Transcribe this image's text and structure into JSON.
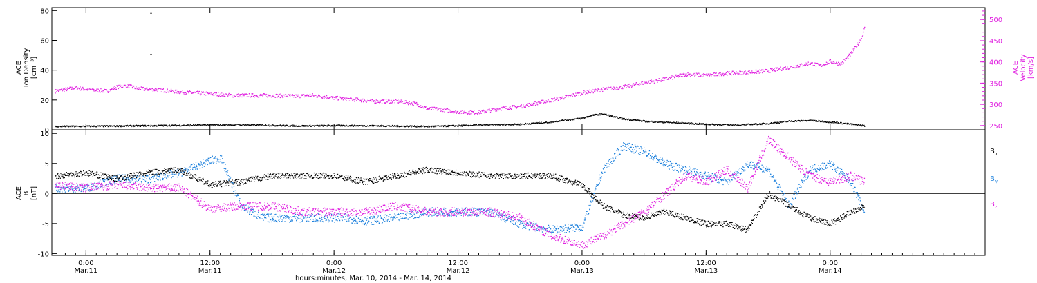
{
  "colors": {
    "black": "#000000",
    "blue": "#1a7fdc",
    "magenta": "#e020e0"
  },
  "chart_data": [
    {
      "type": "scatter",
      "panel": "top",
      "left_axis": {
        "label_lines": [
          "ACE",
          "Ion Density",
          "[cm⁻³]"
        ],
        "ylim": [
          0,
          82
        ],
        "ticks": [
          "0",
          "20",
          "40",
          "60",
          "80"
        ]
      },
      "right_axis": {
        "label_lines": [
          "ACE",
          "Velocity",
          "[km/s]"
        ],
        "ylim": [
          240,
          528
        ],
        "ticks": [
          "250",
          "300",
          "350",
          "400",
          "450",
          "500"
        ]
      },
      "grid": false,
      "series": [
        {
          "axis": "left",
          "color": "#000000",
          "points": [
            [
              -3,
              2.5
            ],
            [
              0,
              2.6
            ],
            [
              3,
              2.8
            ],
            [
              6,
              3.0
            ],
            [
              9,
              3.2
            ],
            [
              12,
              3.5
            ],
            [
              15,
              3.7
            ],
            [
              18,
              3.2
            ],
            [
              21,
              2.9
            ],
            [
              24,
              3.1
            ],
            [
              27,
              3.0
            ],
            [
              30,
              2.8
            ],
            [
              33,
              2.5
            ],
            [
              36,
              3.0
            ],
            [
              39,
              3.6
            ],
            [
              42,
              4.0
            ],
            [
              45,
              5.5
            ],
            [
              46,
              6.5
            ],
            [
              48,
              8.0
            ],
            [
              49,
              10.0
            ],
            [
              50,
              11.0
            ],
            [
              51,
              9.0
            ],
            [
              52,
              7.5
            ],
            [
              54,
              6.0
            ],
            [
              57,
              5.0
            ],
            [
              60,
              4.0
            ],
            [
              63,
              3.5
            ],
            [
              66,
              4.5
            ],
            [
              68,
              6.0
            ],
            [
              70,
              6.5
            ],
            [
              72,
              5.5
            ],
            [
              74,
              4.0
            ],
            [
              75.3,
              3.0
            ]
          ]
        },
        {
          "axis": "right",
          "color": "#e020e0",
          "points": [
            [
              -3,
              332
            ],
            [
              -1,
              340
            ],
            [
              0,
              336
            ],
            [
              2,
              332
            ],
            [
              3,
              342
            ],
            [
              4,
              345
            ],
            [
              5,
              338
            ],
            [
              7,
              335
            ],
            [
              9,
              330
            ],
            [
              11,
              327
            ],
            [
              12,
              326
            ],
            [
              14,
              322
            ],
            [
              16,
              322
            ],
            [
              18,
              322
            ],
            [
              20,
              320
            ],
            [
              22,
              322
            ],
            [
              24,
              316
            ],
            [
              26,
              312
            ],
            [
              28,
              308
            ],
            [
              30,
              308
            ],
            [
              32,
              302
            ],
            [
              33,
              290
            ],
            [
              34,
              290
            ],
            [
              36,
              283
            ],
            [
              38,
              282
            ],
            [
              40,
              291
            ],
            [
              42,
              296
            ],
            [
              44,
              306
            ],
            [
              46,
              316
            ],
            [
              48,
              328
            ],
            [
              50,
              336
            ],
            [
              52,
              342
            ],
            [
              54,
              352
            ],
            [
              56,
              360
            ],
            [
              58,
              372
            ],
            [
              60,
              369
            ],
            [
              62,
              374
            ],
            [
              64,
              376
            ],
            [
              66,
              380
            ],
            [
              68,
              388
            ],
            [
              70,
              398
            ],
            [
              71,
              392
            ],
            [
              72,
              402
            ],
            [
              73,
              396
            ],
            [
              74,
              420
            ],
            [
              75,
              456
            ],
            [
              75.3,
              480
            ]
          ]
        },
        {
          "axis": "left",
          "color": "#000000",
          "points": [
            [
              6.3,
              78.0
            ],
            [
              6.3,
              50.5
            ]
          ]
        }
      ]
    },
    {
      "type": "scatter",
      "panel": "bottom",
      "left_axis": {
        "label_lines": [
          "ACE",
          "B",
          "[nT]"
        ],
        "ylim": [
          -10.3,
          10.6
        ],
        "ticks": [
          "-10",
          "-5",
          "0",
          "5",
          "10"
        ]
      },
      "zero_line": true,
      "grid": false,
      "legend": {
        "placement": "right",
        "entries": [
          {
            "label": "B",
            "sub": "x",
            "color": "#000000"
          },
          {
            "label": "B",
            "sub": "y",
            "color": "#1a7fdc"
          },
          {
            "label": "B",
            "sub": "z",
            "color": "#e020e0"
          }
        ]
      },
      "series": [
        {
          "name": "Bx",
          "color": "#000000",
          "points": [
            [
              -3,
              3
            ],
            [
              0,
              3.5
            ],
            [
              3,
              2.5
            ],
            [
              6,
              3.5
            ],
            [
              9,
              4
            ],
            [
              12,
              1.5
            ],
            [
              15,
              2
            ],
            [
              18,
              3
            ],
            [
              21,
              3
            ],
            [
              24,
              3
            ],
            [
              27,
              2
            ],
            [
              30,
              3
            ],
            [
              33,
              4
            ],
            [
              36,
              3.5
            ],
            [
              39,
              3
            ],
            [
              42,
              3
            ],
            [
              45,
              3
            ],
            [
              48,
              1.5
            ],
            [
              50,
              -2
            ],
            [
              52,
              -3.5
            ],
            [
              54,
              -4
            ],
            [
              56,
              -3
            ],
            [
              58,
              -4
            ],
            [
              60,
              -5
            ],
            [
              62,
              -5
            ],
            [
              64,
              -6
            ],
            [
              66,
              0
            ],
            [
              68,
              -2
            ],
            [
              70,
              -4
            ],
            [
              72,
              -5
            ],
            [
              74,
              -3
            ],
            [
              75.3,
              -2
            ]
          ]
        },
        {
          "name": "By",
          "color": "#1a7fdc",
          "points": [
            [
              -3,
              1
            ],
            [
              0,
              1
            ],
            [
              3,
              2.5
            ],
            [
              6,
              2.5
            ],
            [
              9,
              3.5
            ],
            [
              12,
              5.5
            ],
            [
              13,
              6
            ],
            [
              15,
              -2
            ],
            [
              17,
              -4
            ],
            [
              20,
              -4
            ],
            [
              23,
              -4
            ],
            [
              25,
              -4
            ],
            [
              27,
              -4.5
            ],
            [
              30,
              -4
            ],
            [
              33,
              -3
            ],
            [
              36,
              -3
            ],
            [
              39,
              -3
            ],
            [
              42,
              -5
            ],
            [
              45,
              -6
            ],
            [
              48,
              -5.5
            ],
            [
              50,
              4
            ],
            [
              52,
              8
            ],
            [
              54,
              7
            ],
            [
              56,
              5
            ],
            [
              58,
              4
            ],
            [
              60,
              3
            ],
            [
              62,
              2
            ],
            [
              64,
              5
            ],
            [
              66,
              4
            ],
            [
              68,
              -2
            ],
            [
              70,
              4
            ],
            [
              72,
              5
            ],
            [
              74,
              2
            ],
            [
              75.3,
              -3
            ]
          ]
        },
        {
          "name": "Bz",
          "color": "#e020e0",
          "points": [
            [
              -3,
              1.5
            ],
            [
              0,
              1
            ],
            [
              3,
              1.5
            ],
            [
              6,
              1
            ],
            [
              9,
              1
            ],
            [
              12,
              -2.5
            ],
            [
              15,
              -2
            ],
            [
              18,
              -2
            ],
            [
              21,
              -3
            ],
            [
              24,
              -3
            ],
            [
              27,
              -3
            ],
            [
              30,
              -2
            ],
            [
              33,
              -3
            ],
            [
              36,
              -3
            ],
            [
              39,
              -3
            ],
            [
              42,
              -4
            ],
            [
              45,
              -7
            ],
            [
              48,
              -8.5
            ],
            [
              50,
              -7
            ],
            [
              52,
              -5
            ],
            [
              54,
              -3
            ],
            [
              56,
              0
            ],
            [
              58,
              3
            ],
            [
              60,
              2
            ],
            [
              62,
              4
            ],
            [
              64,
              1
            ],
            [
              66,
              9
            ],
            [
              68,
              6
            ],
            [
              70,
              3
            ],
            [
              72,
              2
            ],
            [
              74,
              3
            ],
            [
              75.3,
              2
            ]
          ]
        }
      ]
    }
  ],
  "x_axis": {
    "range_hours": [
      -3.3,
      87
    ],
    "ticks": [
      {
        "t": 0,
        "time": "0:00",
        "day": "Mar.11"
      },
      {
        "t": 12,
        "time": "12:00",
        "day": "Mar.11"
      },
      {
        "t": 24,
        "time": "0:00",
        "day": "Mar.12"
      },
      {
        "t": 36,
        "time": "12:00",
        "day": "Mar.12"
      },
      {
        "t": 48,
        "time": "0:00",
        "day": "Mar.13"
      },
      {
        "t": 60,
        "time": "12:00",
        "day": "Mar.13"
      },
      {
        "t": 72,
        "time": "0:00",
        "day": "Mar.14"
      }
    ],
    "label": "hours:minutes, Mar. 10, 2014 - Mar. 14, 2014"
  }
}
